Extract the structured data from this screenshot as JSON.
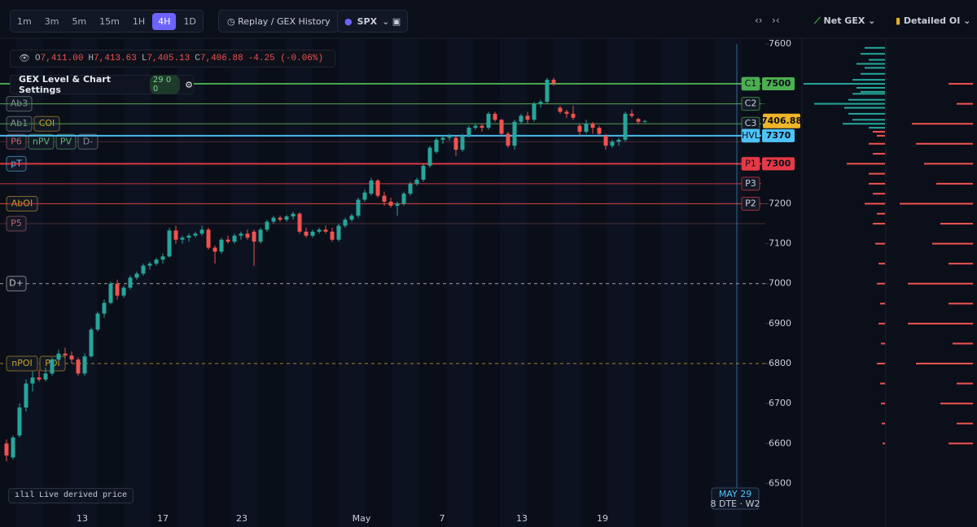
{
  "toolbar": {
    "timeframes": [
      "1m",
      "3m",
      "5m",
      "15m",
      "1H",
      "4H",
      "1D"
    ],
    "active_timeframe": "4H",
    "replay": "Replay / GEX History",
    "symbol": "SPX"
  },
  "panel_tabs": {
    "net_gex": "Net GEX",
    "detailed_oi": "Detailed OI"
  },
  "ohlc": [
    {
      "key": "O",
      "value": "7,411.00"
    },
    {
      "key": "H",
      "value": "7,413.63"
    },
    {
      "key": "L",
      "value": "7,405.13"
    },
    {
      "key": "C",
      "value": "7,406.88"
    }
  ],
  "change": "-4.25 (-0.06%)",
  "settings": {
    "title": "GEX Level & Chart Settings",
    "counts": [
      29,
      0,
      0
    ]
  },
  "chart_data": {
    "type": "candlestick",
    "ylim": [
      6450,
      7610
    ],
    "yticks": [
      6500,
      6600,
      6700,
      6800,
      6900,
      7000,
      7100,
      7200,
      7300,
      7400,
      7500,
      7600
    ],
    "x_labels": [
      "13",
      "17",
      "23",
      "May",
      "7",
      "13",
      "19"
    ],
    "colors": {
      "up": "#26a69a",
      "down": "#ef5350"
    },
    "open": [
      6600,
      6565,
      6620,
      6690,
      6750,
      6765,
      6760,
      6775,
      6810,
      6825,
      6820,
      6810,
      6775,
      6818,
      6885,
      6925,
      6952,
      7000,
      6970,
      6990,
      7015,
      7025,
      7045,
      7050,
      7060,
      7068,
      7133,
      7110,
      7115,
      7120,
      7125,
      7135,
      7090,
      7080,
      7110,
      7105,
      7120,
      7125,
      7130,
      7105,
      7135,
      7155,
      7165,
      7160,
      7168,
      7175,
      7130,
      7120,
      7130,
      7135,
      7130,
      7110,
      7145,
      7160,
      7170,
      7210,
      7225,
      7258,
      7220,
      7205,
      7195,
      7200,
      7225,
      7250,
      7260,
      7295,
      7330,
      7360,
      7365,
      7365,
      7335,
      7370,
      7390,
      7395,
      7390,
      7425,
      7410,
      7375,
      7345,
      7405,
      7420,
      7410,
      7450,
      7455,
      7510,
      7440,
      7430,
      7425,
      7395,
      7380,
      7400,
      7390,
      7370,
      7345,
      7355,
      7360,
      7425,
      7412,
      7405
    ],
    "high": [
      6610,
      6620,
      6700,
      6760,
      6780,
      6785,
      6790,
      6815,
      6835,
      6840,
      6830,
      6815,
      6825,
      6890,
      6930,
      6960,
      7005,
      7010,
      6995,
      7020,
      7030,
      7050,
      7055,
      7065,
      7075,
      7140,
      7145,
      7120,
      7125,
      7130,
      7145,
      7140,
      7095,
      7115,
      7120,
      7125,
      7130,
      7135,
      7135,
      7140,
      7160,
      7170,
      7170,
      7172,
      7180,
      7178,
      7140,
      7135,
      7140,
      7145,
      7140,
      7150,
      7165,
      7175,
      7215,
      7235,
      7265,
      7262,
      7230,
      7215,
      7205,
      7230,
      7255,
      7265,
      7300,
      7345,
      7365,
      7370,
      7375,
      7370,
      7375,
      7395,
      7400,
      7400,
      7430,
      7430,
      7412,
      7380,
      7410,
      7425,
      7430,
      7455,
      7460,
      7515,
      7515,
      7445,
      7435,
      7445,
      7400,
      7410,
      7405,
      7395,
      7375,
      7360,
      7365,
      7430,
      7435,
      7415,
      7410
    ],
    "low": [
      6555,
      6560,
      6615,
      6680,
      6730,
      6755,
      6755,
      6770,
      6805,
      6815,
      6800,
      6770,
      6770,
      6815,
      6880,
      6915,
      6948,
      6960,
      6965,
      6985,
      7010,
      7020,
      7035,
      7045,
      7050,
      7065,
      7100,
      7100,
      7105,
      7115,
      7120,
      7085,
      7050,
      7075,
      7100,
      7100,
      7110,
      7110,
      7045,
      7100,
      7130,
      7150,
      7155,
      7155,
      7160,
      7125,
      7115,
      7115,
      7125,
      7125,
      7105,
      7105,
      7140,
      7155,
      7165,
      7205,
      7220,
      7215,
      7195,
      7190,
      7170,
      7195,
      7220,
      7245,
      7255,
      7290,
      7325,
      7350,
      7358,
      7320,
      7330,
      7365,
      7385,
      7380,
      7385,
      7405,
      7370,
      7340,
      7335,
      7400,
      7400,
      7405,
      7440,
      7450,
      7495,
      7425,
      7415,
      7410,
      7370,
      7375,
      7375,
      7370,
      7335,
      7340,
      7345,
      7355,
      7415,
      7400,
      7402
    ],
    "close": [
      6570,
      6615,
      6690,
      6750,
      6765,
      6760,
      6775,
      6810,
      6825,
      6820,
      6810,
      6775,
      6818,
      6885,
      6925,
      6952,
      7000,
      6970,
      6990,
      7015,
      7025,
      7045,
      7050,
      7060,
      7068,
      7133,
      7110,
      7115,
      7120,
      7125,
      7135,
      7090,
      7080,
      7110,
      7105,
      7120,
      7125,
      7115,
      7105,
      7135,
      7155,
      7165,
      7160,
      7168,
      7175,
      7130,
      7120,
      7130,
      7135,
      7130,
      7110,
      7145,
      7160,
      7170,
      7210,
      7228,
      7258,
      7220,
      7205,
      7195,
      7200,
      7225,
      7250,
      7260,
      7295,
      7340,
      7360,
      7365,
      7370,
      7335,
      7370,
      7390,
      7395,
      7390,
      7425,
      7410,
      7375,
      7345,
      7405,
      7420,
      7410,
      7450,
      7455,
      7510,
      7500,
      7430,
      7425,
      7415,
      7380,
      7400,
      7390,
      7375,
      7345,
      7355,
      7360,
      7425,
      7420,
      7405,
      7407
    ],
    "last_price": 7406.88,
    "levels": [
      {
        "label": "C1",
        "value": 7500,
        "color": "#4caf50",
        "tag_value": true
      },
      {
        "label": "C2",
        "value": 7450,
        "color": "#4caf50"
      },
      {
        "label": "C3",
        "value": 7400,
        "color": "#4caf50"
      },
      {
        "label": "HVL",
        "value": 7370,
        "color": "#4fc3f7",
        "tag_value": true
      },
      {
        "label": "P1",
        "value": 7300,
        "color": "#e53945",
        "tag_value": true
      },
      {
        "label": "P3",
        "value": 7250,
        "color": "#e53945"
      },
      {
        "label": "P2",
        "value": 7200,
        "color": "#e53945"
      }
    ],
    "left_tags": [
      {
        "label": "Ab3",
        "value": 7450,
        "color": "#8a8f98"
      },
      {
        "label": "Ab1",
        "value": 7400,
        "color": "#8a8f98"
      },
      {
        "label": "COI",
        "value": 7400,
        "color": "#c9a227"
      },
      {
        "label": "P6",
        "value": 7355,
        "color": "#c0646c"
      },
      {
        "label": "nPV",
        "value": 7355,
        "color": "#5fb878"
      },
      {
        "label": "PV",
        "value": 7355,
        "color": "#5fb878"
      },
      {
        "label": "D-",
        "value": 7355,
        "color": "#8a8f98"
      },
      {
        "label": "pT",
        "value": 7300,
        "color": "#4fc3f7"
      },
      {
        "label": "AbOI",
        "value": 7200,
        "color": "#c9a227"
      },
      {
        "label": "P5",
        "value": 7150,
        "color": "#c0646c"
      },
      {
        "label": "D+",
        "value": 7000,
        "color": "#c8c8c8",
        "dashed": true
      },
      {
        "label": "nPOI",
        "value": 6800,
        "color": "#c9a227",
        "dashed": true
      },
      {
        "label": "POI",
        "value": 6800,
        "color": "#c9a227",
        "dashed": true
      }
    ],
    "expiry": {
      "label": "MAY 29",
      "sub": "8 DTE · W2"
    },
    "badge": "Live derived price"
  },
  "net_gex": {
    "strikes": [
      7590,
      7575,
      7560,
      7550,
      7540,
      7525,
      7510,
      7500,
      7490,
      7480,
      7475,
      7460,
      7450,
      7440,
      7425,
      7410,
      7400,
      7390,
      7380,
      7370,
      7350,
      7325,
      7300,
      7275,
      7250,
      7225,
      7200,
      7175,
      7150,
      7100,
      7050,
      7000,
      6950,
      6900,
      6850,
      6800,
      6750,
      6700,
      6650,
      6600
    ],
    "values": [
      25,
      30,
      20,
      35,
      25,
      30,
      40,
      100,
      35,
      30,
      40,
      45,
      87,
      50,
      45,
      40,
      52,
      20,
      -15,
      -10,
      -20,
      -15,
      -47,
      -20,
      -20,
      -15,
      -25,
      -10,
      -15,
      -12,
      -8,
      -10,
      -6,
      -8,
      -5,
      -10,
      -6,
      -5,
      -4,
      -3
    ]
  },
  "detailed_oi": {
    "strikes": [
      7500,
      7450,
      7400,
      7350,
      7300,
      7250,
      7200,
      7150,
      7100,
      7050,
      7000,
      6950,
      6900,
      6850,
      6800,
      6750,
      6700,
      6650,
      6600
    ],
    "values": [
      -30,
      -20,
      -75,
      -70,
      -60,
      -45,
      -90,
      -40,
      -50,
      -30,
      -80,
      -30,
      -80,
      -25,
      -70,
      -20,
      -40,
      -20,
      -30
    ]
  }
}
